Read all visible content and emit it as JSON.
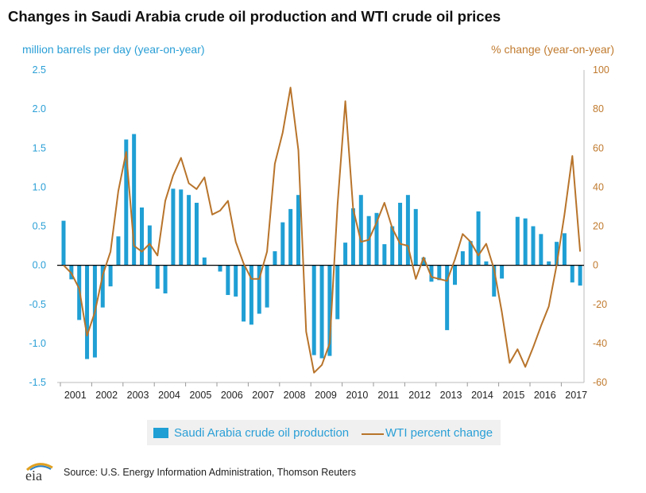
{
  "title": "Changes in Saudi Arabia crude oil production and WTI crude oil prices",
  "left_axis_label": "million barrels per day (year-on-year)",
  "right_axis_label": "% change (year-on-year)",
  "legend": {
    "bar_label": "Saudi Arabia crude oil production",
    "line_label": "WTI percent change"
  },
  "source": "Source: U.S. Energy Information Administration, Thomson Reuters",
  "logo_text": "eia",
  "colors": {
    "bars": "#1f9fd4",
    "line": "#b8742b",
    "left_axis": "#2a9fd6",
    "right_axis": "#c07a2e"
  },
  "chart_data": {
    "type": "bar+line",
    "x_tick_labels": [
      "2001",
      "2002",
      "2003",
      "2004",
      "2005",
      "2006",
      "2007",
      "2008",
      "2009",
      "2010",
      "2011",
      "2012",
      "2013",
      "2014",
      "2015",
      "2016",
      "2017"
    ],
    "left_ylim": [
      -1.5,
      2.5
    ],
    "left_ticks": [
      "2.5",
      "2.0",
      "1.5",
      "1.0",
      "0.5",
      "0.0",
      "-0.5",
      "-1.0",
      "-1.5"
    ],
    "right_ylim": [
      -60,
      100
    ],
    "right_ticks": [
      "100",
      "80",
      "60",
      "40",
      "20",
      "0",
      "-20",
      "-40",
      "-60"
    ],
    "series": [
      {
        "name": "Saudi Arabia crude oil production",
        "type": "bar",
        "axis": "left",
        "values": [
          0.57,
          -0.18,
          -0.7,
          -1.2,
          -1.18,
          -0.54,
          -0.27,
          0.37,
          1.61,
          1.68,
          0.74,
          0.51,
          -0.3,
          -0.36,
          0.98,
          0.97,
          0.9,
          0.8,
          0.1,
          0.0,
          -0.08,
          -0.38,
          -0.4,
          -0.72,
          -0.76,
          -0.62,
          -0.54,
          0.18,
          0.55,
          0.72,
          0.9,
          0.0,
          -1.15,
          -1.19,
          -1.16,
          -0.69,
          0.29,
          0.73,
          0.9,
          0.63,
          0.67,
          0.27,
          0.5,
          0.8,
          0.9,
          0.72,
          0.1,
          -0.21,
          -0.19,
          -0.83,
          -0.25,
          0.18,
          0.31,
          0.69,
          0.05,
          -0.4,
          -0.17,
          0.0,
          0.62,
          0.6,
          0.5,
          0.4,
          0.05,
          0.3,
          0.41,
          -0.22,
          -0.26
        ]
      },
      {
        "name": "WTI percent change",
        "type": "line",
        "axis": "right",
        "values": [
          0,
          -4,
          -12,
          -36,
          -24,
          -5,
          7,
          38,
          58,
          10,
          7,
          11,
          5,
          33,
          46,
          55,
          42,
          39,
          45,
          26,
          28,
          33,
          12,
          1,
          -7,
          -7,
          7,
          52,
          68,
          91,
          59,
          -34,
          -55,
          -51,
          -40,
          31,
          84,
          29,
          12,
          13,
          22,
          32,
          19,
          11,
          10,
          -7,
          4,
          -6,
          -7,
          -8,
          3,
          16,
          12,
          5,
          11,
          -2,
          -24,
          -50,
          -43,
          -52,
          -42,
          -31,
          -21,
          0,
          26,
          56,
          7
        ]
      }
    ]
  }
}
